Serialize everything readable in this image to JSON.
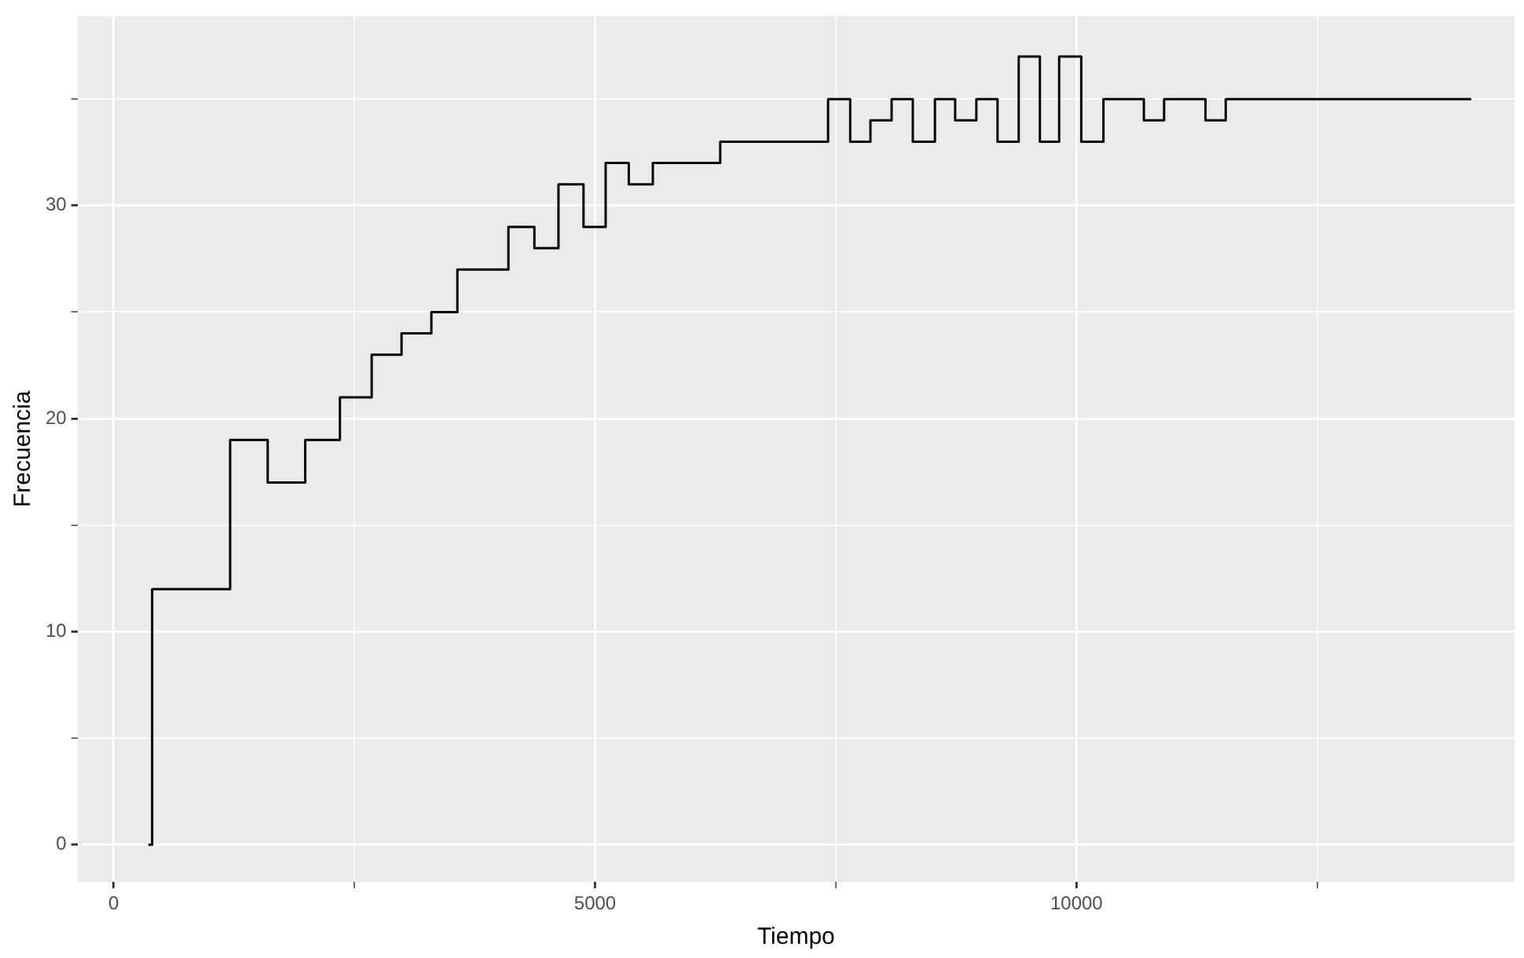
{
  "chart_data": {
    "type": "step",
    "xlabel": "Tiempo",
    "ylabel": "Frecuencia",
    "xlim": [
      -375,
      14550
    ],
    "ylim": [
      -1.75,
      38.9
    ],
    "xticks": [
      0,
      {
        "value": 2500,
        "label": null
      },
      5000,
      {
        "value": 7500,
        "label": null
      },
      10000,
      {
        "value": 12500,
        "label": null
      }
    ],
    "yticks": [
      0,
      {
        "value": 5,
        "label": null
      },
      10,
      {
        "value": 15,
        "label": null
      },
      20,
      {
        "value": 25,
        "label": null
      },
      30,
      {
        "value": 35,
        "label": null
      }
    ],
    "grid": true,
    "marker": "none",
    "line_style": "solid",
    "series": [
      {
        "color": "#000000",
        "x": [
          360,
          400,
          1210,
          1600,
          1990,
          2350,
          2680,
          2990,
          3300,
          3570,
          4100,
          4370,
          4620,
          4880,
          5110,
          5350,
          5600,
          6300,
          7420,
          7650,
          7860,
          8080,
          8300,
          8530,
          8740,
          8960,
          9180,
          9400,
          9620,
          9820,
          10050,
          10280,
          10700,
          10910,
          11340,
          11550,
          14100
        ],
        "values": [
          0,
          12,
          19,
          17,
          19,
          21,
          23,
          24,
          25,
          27,
          29,
          28,
          31,
          29,
          32,
          31,
          32,
          33,
          35,
          33,
          34,
          35,
          33,
          35,
          34,
          35,
          33,
          37,
          33,
          37,
          33,
          35,
          34,
          35,
          34,
          35,
          35
        ]
      }
    ]
  }
}
